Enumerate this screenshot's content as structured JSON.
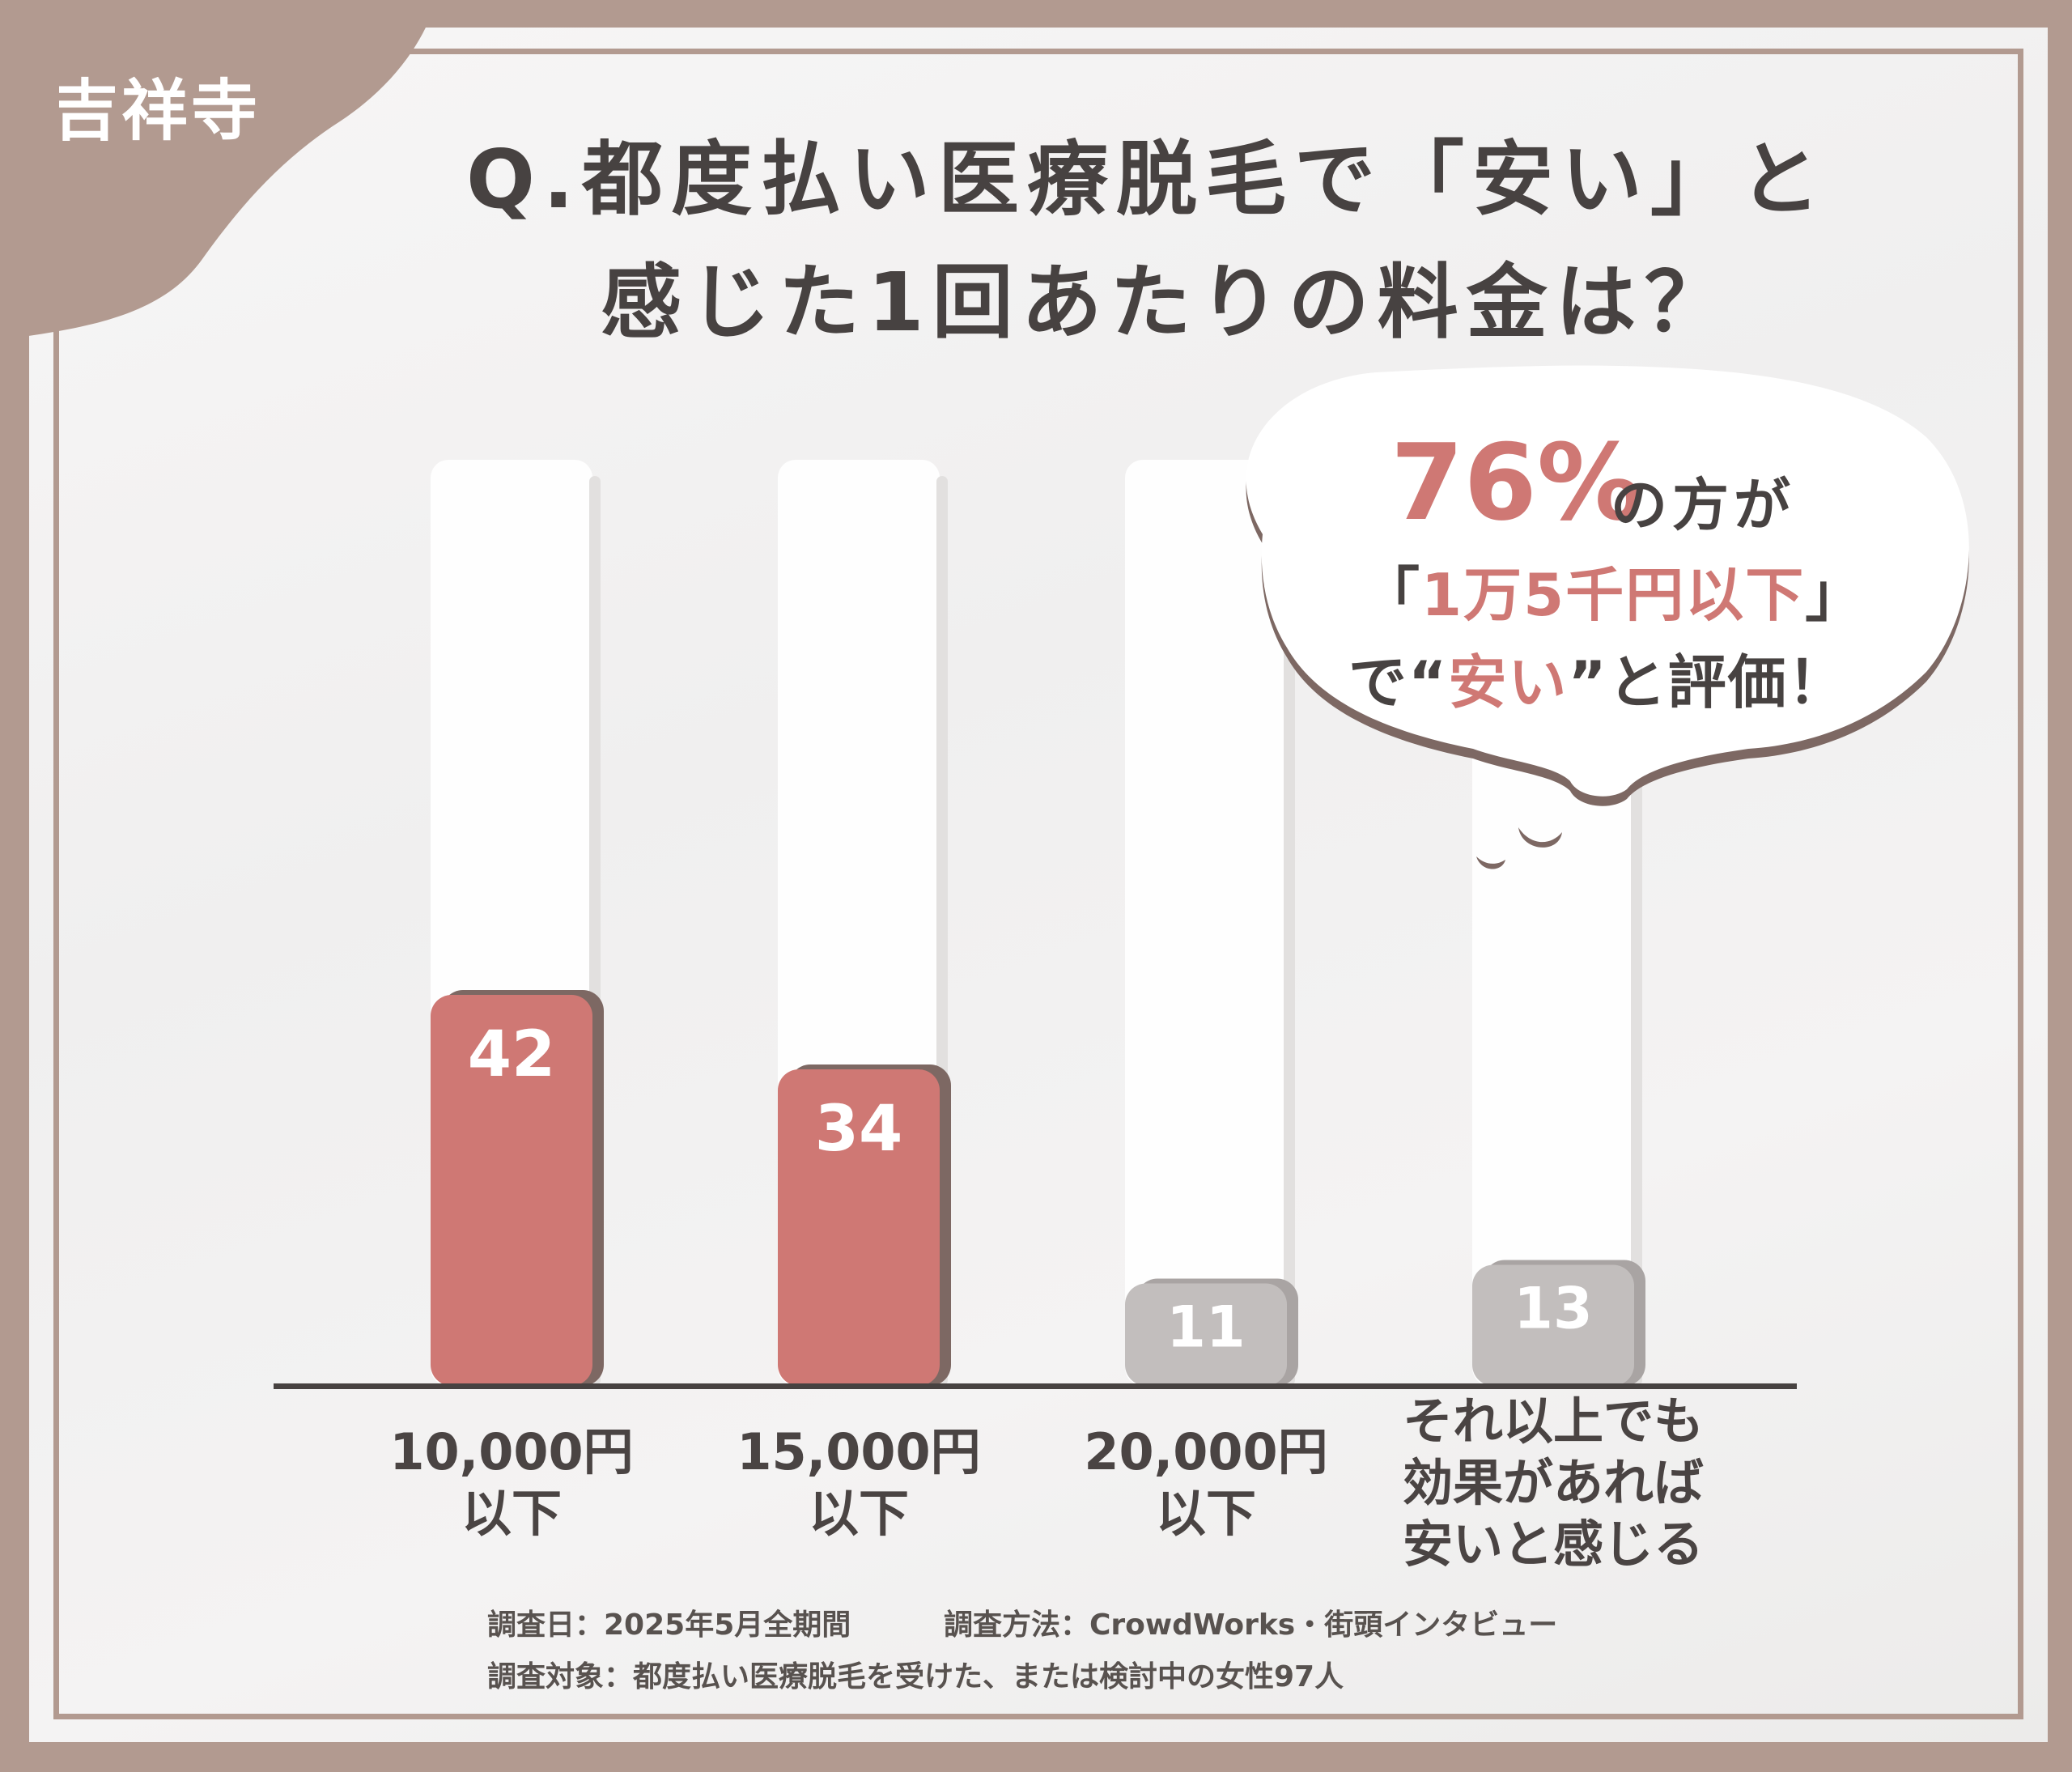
{
  "location_tag": "吉祥寺",
  "title": {
    "line1": "Q.都度払い医療脱毛で「安い」と",
    "line2": "感じた1回あたりの料金は？"
  },
  "callout": {
    "percent": "76%",
    "suffix": "の方が",
    "line2_open": "「",
    "line2_accent": "1万5千円以下",
    "line2_close": "」",
    "line3_pre": "で“",
    "line3_accent": "安い",
    "line3_post": "”と評価！"
  },
  "chart_data": {
    "type": "bar",
    "categories": [
      "10,000円\n以下",
      "15,000円\n以下",
      "20,000円\n以下",
      "それ以上でも\n効果があれば\n安いと感じる"
    ],
    "values": [
      42,
      34,
      11,
      13
    ],
    "highlight": [
      true,
      true,
      false,
      false
    ],
    "colors": {
      "highlight": "#cf7874",
      "highlight_shadow": "#7d6863",
      "normal": "#c2bebd",
      "normal_shadow": "#a9a4a3",
      "axis": "#474241"
    },
    "title": "",
    "xlabel": "",
    "ylabel": "",
    "ylim": [
      0,
      60
    ],
    "grid": false,
    "legend": "none"
  },
  "notes": {
    "date": "調査日：2025年5月全期間",
    "method": "調査方法：CrowdWorks・街頭インタビュー",
    "target": "調査対象：都度払い医療脱毛を受けた、または検討中の女性97人"
  }
}
